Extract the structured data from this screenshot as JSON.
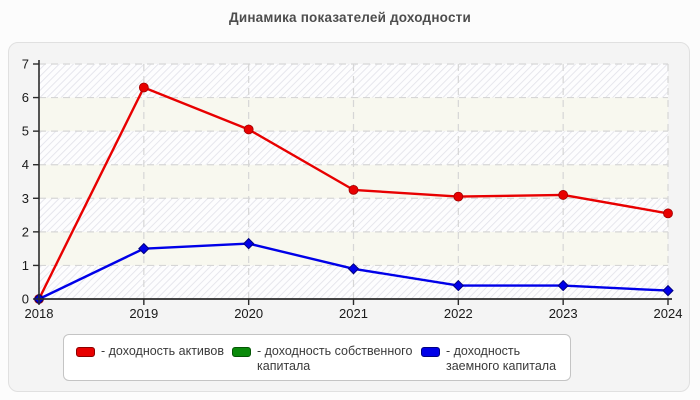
{
  "title": "Динамика показателей доходности",
  "chart_data": {
    "type": "line",
    "title": "Динамика показателей доходности",
    "categories": [
      "2018",
      "2019",
      "2020",
      "2021",
      "2022",
      "2023",
      "2024"
    ],
    "series": [
      {
        "name": "доходность активов",
        "color": "#e80000",
        "marker_border": "#a00000",
        "marker": "circle",
        "visible": true,
        "values": [
          0,
          6.3,
          5.05,
          3.25,
          3.05,
          3.1,
          2.55
        ]
      },
      {
        "name": "доходность собственного капитала",
        "color": "#0a8a0a",
        "marker_border": "#045504",
        "marker": "square",
        "visible": false,
        "values": []
      },
      {
        "name": "доходность заемного капитала",
        "color": "#0000e8",
        "marker_border": "#000080",
        "marker": "diamond",
        "visible": true,
        "values": [
          0,
          1.5,
          1.65,
          0.9,
          0.4,
          0.4,
          0.25
        ]
      }
    ],
    "ylim": [
      0,
      7
    ],
    "yticks": [
      0,
      1,
      2,
      3,
      4,
      5,
      6,
      7
    ],
    "grid": "dashed",
    "legend_position": "bottom"
  },
  "legend": {
    "items": [
      {
        "label": "- доходность активов",
        "color": "#e80000",
        "border": "#8b0000"
      },
      {
        "label": "- доходность собственного капитала",
        "color": "#0a8a0a",
        "border": "#045504"
      },
      {
        "label": "- доходность заемного капитала",
        "color": "#0000e8",
        "border": "#000080"
      }
    ]
  },
  "colors": {
    "page_bg": "#fcfcfc",
    "panel_bg": "#f4f4f4",
    "panel_border": "#e0e0e0",
    "band_hatch_base": "#fdfdfe",
    "band_hatch_line": "#e3e3ea",
    "band_plain": "#f8f8ef",
    "gridline": "#d6d6d6",
    "axis": "#2b2b2b",
    "tick_text": "#1a1a1a",
    "title_text": "#4d4d4d",
    "legend_text": "#3a3a3a"
  }
}
